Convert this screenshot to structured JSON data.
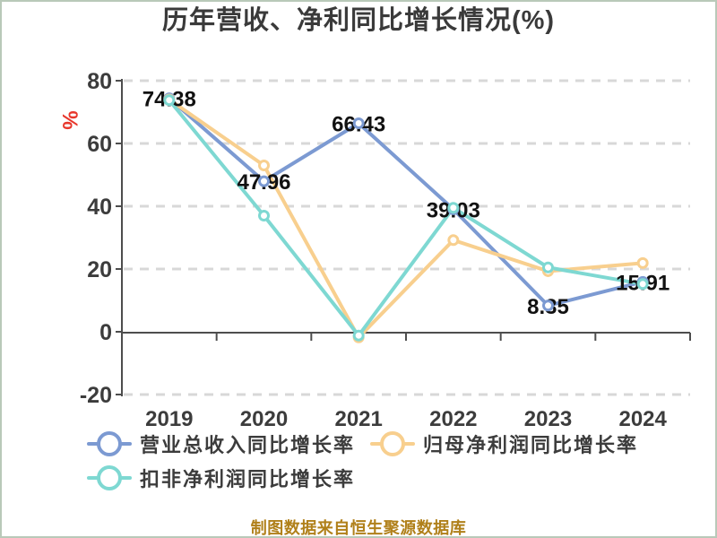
{
  "title": "历年营收、净利同比增长情况(%)",
  "y_axis": {
    "unit": "%",
    "unit_color": "#e8372c",
    "ticks": [
      80,
      60,
      40,
      20,
      0,
      -20
    ],
    "max": 80,
    "min": -20
  },
  "chart_data": {
    "type": "line",
    "title": "历年营收、净利同比增长情况(%)",
    "xlabel": "",
    "ylabel": "%",
    "ylim": [
      -20,
      80
    ],
    "grid": true,
    "grid_style": "dashed",
    "legend_position": "bottom",
    "categories": [
      "2019",
      "2020",
      "2021",
      "2022",
      "2023",
      "2024"
    ],
    "series": [
      {
        "name": "营业总收入同比增长率",
        "color": "#7c9ad2",
        "values": [
          74.38,
          47.96,
          66.43,
          39.03,
          8.35,
          15.91
        ],
        "labels": [
          "74.38",
          "47.96",
          "66.43",
          "39.03",
          "8.35",
          "15.91"
        ]
      },
      {
        "name": "归母净利润同比增长率",
        "color": "#f8cf8e",
        "values": [
          74.0,
          53.0,
          -1.8,
          29.2,
          19.3,
          21.9
        ]
      },
      {
        "name": "扣非净利润同比增长率",
        "color": "#7ed8d2",
        "values": [
          73.8,
          37.0,
          -1.2,
          39.5,
          20.5,
          15.2
        ]
      }
    ],
    "marker": {
      "shape": "circle",
      "fill": "#ffffff"
    },
    "axis_color": "#4d4d4d",
    "gridline_color": "#d8d8d8",
    "label_color": "#111111"
  },
  "footer": {
    "text": "制图数据来自恒生聚源数据库",
    "color": "#b0801a"
  }
}
